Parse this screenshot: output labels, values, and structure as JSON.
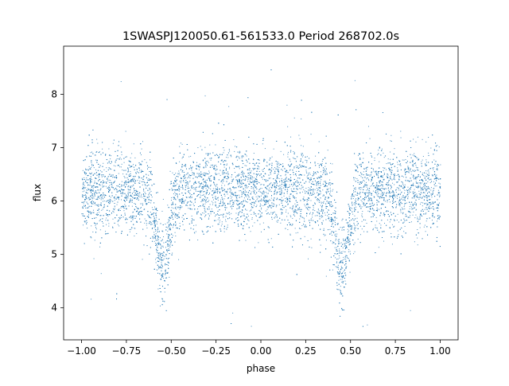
{
  "chart_data": {
    "type": "scatter",
    "title": "1SWASPJ120050.61-561533.0 Period 268702.0s",
    "xlabel": "phase",
    "ylabel": "flux",
    "xlim": [
      -1.1,
      1.1
    ],
    "ylim": [
      3.4,
      8.9
    ],
    "x_ticks": [
      -1.0,
      -0.75,
      -0.5,
      -0.25,
      0.0,
      0.25,
      0.5,
      0.75,
      1.0
    ],
    "x_tick_labels": [
      "−1.00",
      "−0.75",
      "−0.50",
      "−0.25",
      "0.00",
      "0.25",
      "0.50",
      "0.75",
      "1.00"
    ],
    "y_ticks": [
      4,
      5,
      6,
      7,
      8
    ],
    "y_tick_labels": [
      "4",
      "5",
      "6",
      "7",
      "8"
    ],
    "grid": false,
    "legend": "none",
    "marker_color": "#1f77b4",
    "series": [
      {
        "phase_range": [
          -1.0,
          1.0
        ],
        "baseline_flux": 6.2,
        "flux_scatter": 0.45,
        "eclipse_minima": [
          {
            "phase": -0.55,
            "flux": 4.5
          },
          {
            "phase": 0.45,
            "flux": 4.5
          }
        ],
        "approx_point_count": 9000,
        "flux_outlier_range": [
          3.6,
          8.6
        ]
      }
    ]
  }
}
